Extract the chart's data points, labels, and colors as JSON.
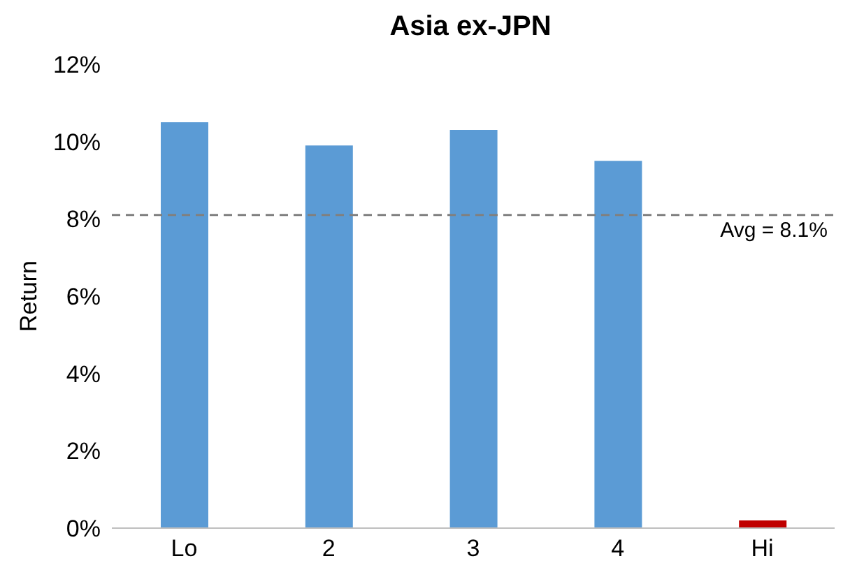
{
  "chart_data": {
    "type": "bar",
    "title": "Asia ex-JPN",
    "ylabel": "Return",
    "categories": [
      "Lo",
      "2",
      "3",
      "4",
      "Hi"
    ],
    "values": [
      10.5,
      9.9,
      10.3,
      9.5,
      0.2
    ],
    "colors": [
      "#5b9bd5",
      "#5b9bd5",
      "#5b9bd5",
      "#5b9bd5",
      "#c00000"
    ],
    "ylim": [
      0,
      12
    ],
    "yticks": [
      {
        "value": 0,
        "label": "0%"
      },
      {
        "value": 2,
        "label": "2%"
      },
      {
        "value": 4,
        "label": "4%"
      },
      {
        "value": 6,
        "label": "6%"
      },
      {
        "value": 8,
        "label": "8%"
      },
      {
        "value": 10,
        "label": "10%"
      },
      {
        "value": 12,
        "label": "12%"
      }
    ],
    "ref_lines": [
      {
        "axis": "y",
        "value": 8.1,
        "label": "Avg = 8.1%",
        "color": "#808080",
        "line_style": "dashed"
      }
    ],
    "grid": false,
    "legend": false
  }
}
